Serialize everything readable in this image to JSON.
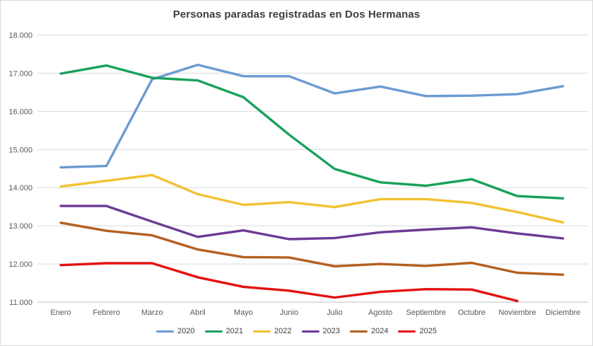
{
  "chart_data": {
    "type": "line",
    "title": "Personas paradas registradas en Dos Hermanas",
    "categories": [
      "Enero",
      "Febrero",
      "Marzo",
      "Abril",
      "Mayo",
      "Junio",
      "Julio",
      "Agosto",
      "Septiembre",
      "Octubre",
      "Noviembre",
      "Diciembre"
    ],
    "series": [
      {
        "name": "2020",
        "color": "#6C9BD2",
        "values": [
          14530,
          14570,
          16840,
          17220,
          16920,
          16920,
          16470,
          16650,
          16400,
          16410,
          16450,
          16660
        ]
      },
      {
        "name": "2021",
        "color": "#18A15C",
        "values": [
          16990,
          17200,
          16880,
          16810,
          16370,
          15390,
          14490,
          14140,
          14050,
          14220,
          13780,
          13720
        ]
      },
      {
        "name": "2022",
        "color": "#F1C232",
        "values": [
          14030,
          14180,
          14330,
          13830,
          13550,
          13620,
          13490,
          13700,
          13700,
          13600,
          13360,
          13090
        ]
      },
      {
        "name": "2023",
        "color": "#6D3A96",
        "values": [
          13520,
          13520,
          13110,
          12710,
          12880,
          12650,
          12680,
          12830,
          12900,
          12960,
          12800,
          12670
        ]
      },
      {
        "name": "2024",
        "color": "#B45F20",
        "values": [
          13080,
          12870,
          12750,
          12380,
          12180,
          12170,
          11940,
          12000,
          11950,
          12030,
          11770,
          11720
        ]
      },
      {
        "name": "2025",
        "color": "#E41111",
        "values": [
          11970,
          12020,
          12020,
          11650,
          11400,
          11300,
          11120,
          11270,
          11340,
          11330,
          11030,
          null
        ]
      }
    ],
    "ylim": [
      11000,
      18000
    ],
    "ytick_step": 1000,
    "yticks": [
      {
        "value": 11000,
        "label": "11.000"
      },
      {
        "value": 12000,
        "label": "12.000"
      },
      {
        "value": 13000,
        "label": "13.000"
      },
      {
        "value": 14000,
        "label": "14.000"
      },
      {
        "value": 15000,
        "label": "15.000"
      },
      {
        "value": 16000,
        "label": "16.000"
      },
      {
        "value": 17000,
        "label": "17.000"
      },
      {
        "value": 18000,
        "label": "18.000"
      }
    ],
    "grid": true,
    "legend_position": "bottom",
    "xlabel": "",
    "ylabel": ""
  },
  "colors": {
    "title_text": "#3F3F3F",
    "axis_text": "#595959",
    "gridline": "#D9D9D9",
    "axis_line": "#BFBFBF",
    "background": "#FFFFFF",
    "frame_border": "#D9D9D9"
  }
}
